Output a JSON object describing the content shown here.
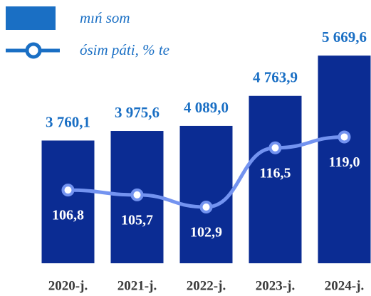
{
  "chart_data": {
    "type": "bar-line",
    "categories": [
      "2020-j.",
      "2021-j.",
      "2022-j.",
      "2023-j.",
      "2024-j."
    ],
    "series": [
      {
        "name": "mıń som",
        "type": "bar",
        "color": "#0b2c93",
        "values": [
          3760.1,
          3975.6,
          4089.0,
          4763.9,
          5669.6
        ],
        "value_labels": [
          "3 760,1",
          "3 975,6",
          "4 089,0",
          "4 763,9",
          "5 669,6"
        ]
      },
      {
        "name": "ósim páti, % te",
        "type": "line",
        "axis": "y2",
        "color": "#7393f0",
        "values": [
          106.8,
          105.7,
          102.9,
          116.5,
          119.0
        ],
        "value_labels": [
          "106,8",
          "105,7",
          "102,9",
          "116,5",
          "119,0"
        ]
      }
    ],
    "ylim": [
      1000,
      5800
    ],
    "y2lim": [
      90,
      139
    ]
  }
}
